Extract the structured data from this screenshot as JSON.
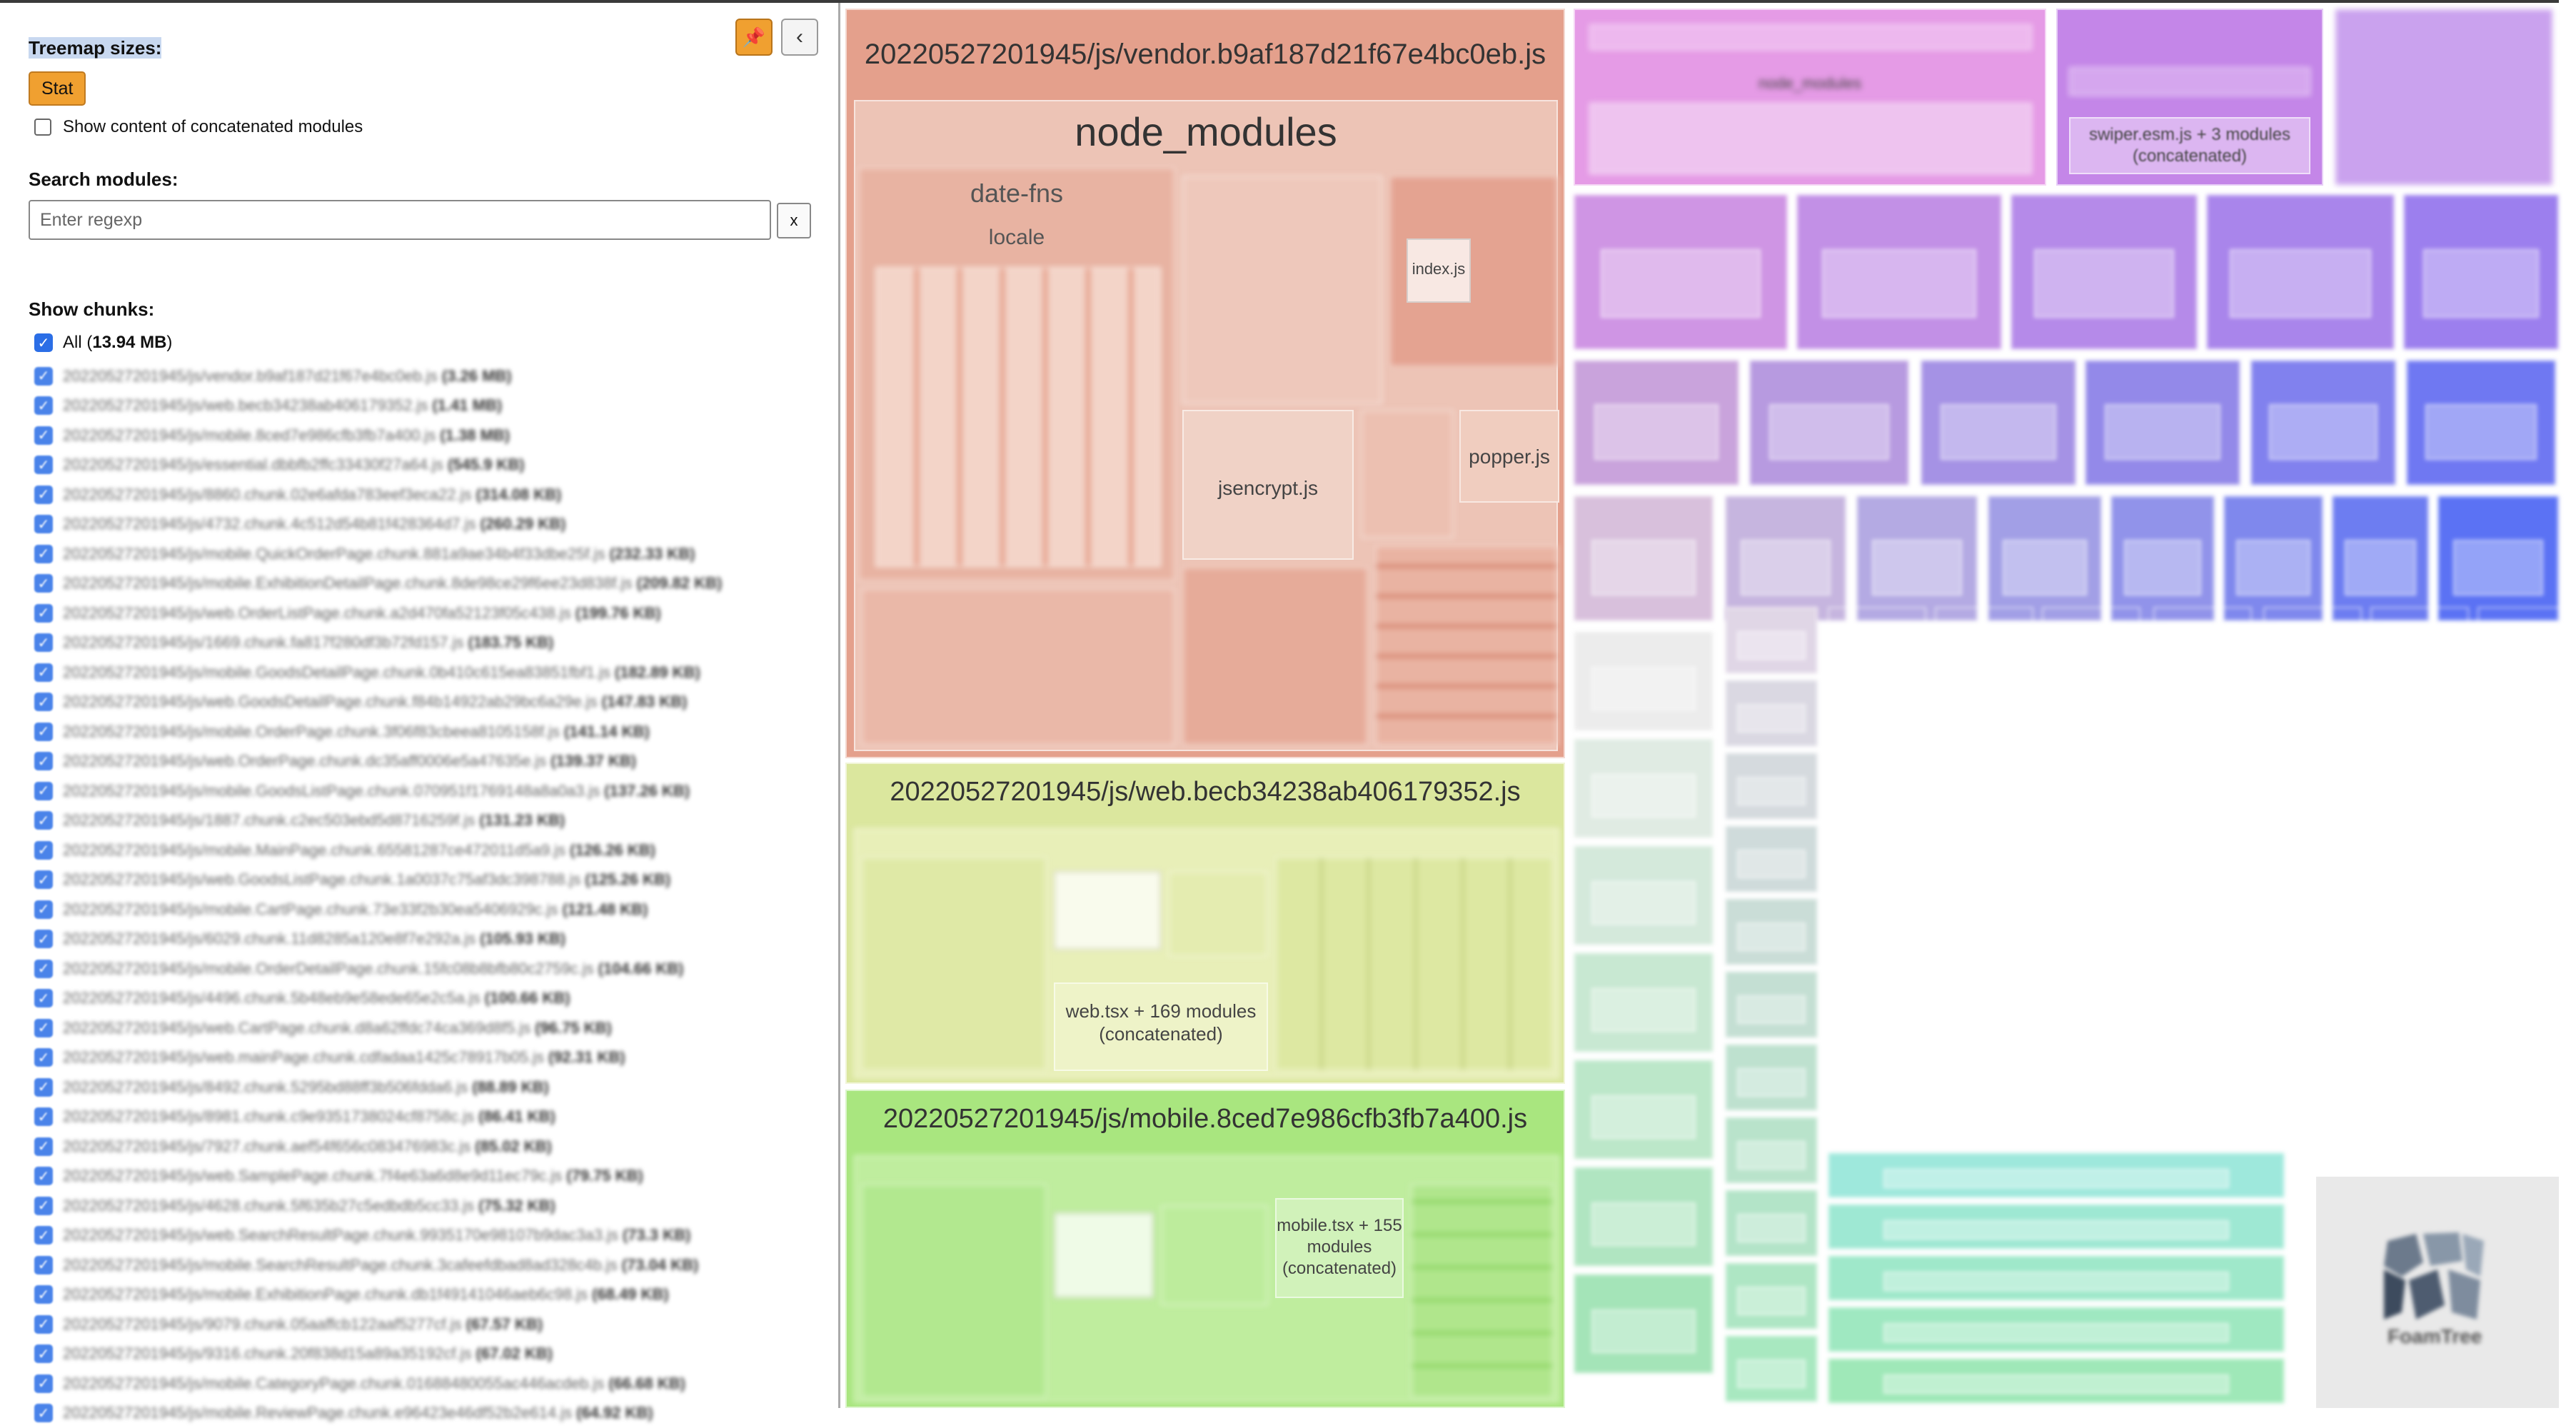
{
  "sidebar": {
    "treemap_sizes_label": "Treemap sizes:",
    "size_option_label": "Stat",
    "show_concat_label": "Show content of concatenated modules",
    "search_label": "Search modules:",
    "search_placeholder": "Enter regexp",
    "clear_label": "x",
    "pin_icon": "pin-icon",
    "collapse_icon": "chevron-left-icon",
    "pin_glyph": "📌",
    "collapse_glyph": "‹",
    "show_chunks_label": "Show chunks:",
    "all_prefix": "All (",
    "all_size": "13.94 MB",
    "all_suffix": ")",
    "chunks": [
      {
        "name": "20220527201945/js/vendor.b9af187d21f67e4bc0eb.js",
        "size": "3.26 MB"
      },
      {
        "name": "20220527201945/js/web.becb34238ab406179352.js",
        "size": "1.41 MB"
      },
      {
        "name": "20220527201945/js/mobile.8ced7e986cfb3fb7a400.js",
        "size": "1.38 MB"
      },
      {
        "name": "20220527201945/js/essential.dbbfb2ffc33430f27a64.js",
        "size": "545.9 KB"
      },
      {
        "name": "20220527201945/js/8860.chunk.02e6afda783eef3eca22.js",
        "size": "314.08 KB"
      },
      {
        "name": "20220527201945/js/4732.chunk.4c512d54b81f428364d7.js",
        "size": "260.29 KB"
      },
      {
        "name": "20220527201945/js/mobile.QuickOrderPage.chunk.881a9ae34b4f33dbe25f.js",
        "size": "232.33 KB"
      },
      {
        "name": "20220527201945/js/mobile.ExhibitionDetailPage.chunk.8de98ce29f6ee23d838f.js",
        "size": "209.82 KB"
      },
      {
        "name": "20220527201945/js/web.OrderListPage.chunk.a2d470fa52123f05c438.js",
        "size": "199.76 KB"
      },
      {
        "name": "20220527201945/js/1669.chunk.fa817f280df3b72fd157.js",
        "size": "183.75 KB"
      },
      {
        "name": "20220527201945/js/mobile.GoodsDetailPage.chunk.0b410c615ea83851fbf1.js",
        "size": "182.89 KB"
      },
      {
        "name": "20220527201945/js/web.GoodsDetailPage.chunk.f84b14922ab29bc6a29e.js",
        "size": "147.83 KB"
      },
      {
        "name": "20220527201945/js/mobile.OrderPage.chunk.3f06f83cbeea8105158f.js",
        "size": "141.14 KB"
      },
      {
        "name": "20220527201945/js/web.OrderPage.chunk.dc35aff0006e5a47635e.js",
        "size": "139.37 KB"
      },
      {
        "name": "20220527201945/js/mobile.GoodsListPage.chunk.070951f1769148a8a0a3.js",
        "size": "137.26 KB"
      },
      {
        "name": "20220527201945/js/1887.chunk.c2ec503ebd5d8716259f.js",
        "size": "131.23 KB"
      },
      {
        "name": "20220527201945/js/mobile.MainPage.chunk.65581287ce472011d5a9.js",
        "size": "126.26 KB"
      },
      {
        "name": "20220527201945/js/web.GoodsListPage.chunk.1a0037c75af3dc398788.js",
        "size": "125.26 KB"
      },
      {
        "name": "20220527201945/js/mobile.CartPage.chunk.73e33f2b30ea5406929c.js",
        "size": "121.48 KB"
      },
      {
        "name": "20220527201945/js/6029.chunk.11d8285a120e8f7e292a.js",
        "size": "105.93 KB"
      },
      {
        "name": "20220527201945/js/mobile.OrderDetailPage.chunk.15fc08b8bfb80c2759c.js",
        "size": "104.66 KB"
      },
      {
        "name": "20220527201945/js/4496.chunk.5b48eb9e58ede65e2c5a.js",
        "size": "100.66 KB"
      },
      {
        "name": "20220527201945/js/web.CartPage.chunk.d8a62ffdc74ca369d8f5.js",
        "size": "96.75 KB"
      },
      {
        "name": "20220527201945/js/web.mainPage.chunk.cdfadaa1425c78917b05.js",
        "size": "92.31 KB"
      },
      {
        "name": "20220527201945/js/8492.chunk.5295bd88ff3b506fdda6.js",
        "size": "88.89 KB"
      },
      {
        "name": "20220527201945/js/8981.chunk.c9e9351738024cf8758c.js",
        "size": "86.41 KB"
      },
      {
        "name": "20220527201945/js/7927.chunk.aef54f656c083476983c.js",
        "size": "85.02 KB"
      },
      {
        "name": "20220527201945/js/web.SamplePage.chunk.7f4e63a6d8e9d11ec79c.js",
        "size": "79.75 KB"
      },
      {
        "name": "20220527201945/js/4628.chunk.5f635b27c5edbdb5cc33.js",
        "size": "75.32 KB"
      },
      {
        "name": "20220527201945/js/web.SearchResultPage.chunk.9935170e98107b9dac3a3.js",
        "size": "73.3 KB"
      },
      {
        "name": "20220527201945/js/mobile.SearchResultPage.chunk.3cafeefdbad8ad328c4b.js",
        "size": "73.04 KB"
      },
      {
        "name": "20220527201945/js/mobile.ExhibitionPage.chunk.db1f49141046aeb6c98.js",
        "size": "68.49 KB"
      },
      {
        "name": "20220527201945/js/9079.chunk.05aaffcb122aaf5277cf.js",
        "size": "67.57 KB"
      },
      {
        "name": "20220527201945/js/9316.chunk.20f838d15a89a35192cf.js",
        "size": "67.02 KB"
      },
      {
        "name": "20220527201945/js/mobile.CategoryPage.chunk.01688480055ac446acdeb.js",
        "size": "66.68 KB"
      },
      {
        "name": "20220527201945/js/mobile.ReviewPage.chunk.e96423e46df52b2e614.js",
        "size": "64.92 KB"
      }
    ]
  },
  "treemap": {
    "vendor_title": "20220527201945/js/vendor.b9af187d21f67e4bc0eb.js",
    "vendor_node_modules": "node_modules",
    "vendor_date_fns": "date-fns",
    "vendor_locale": "locale",
    "vendor_jsencrypt": "jsencrypt.js",
    "vendor_popper": "popper.js",
    "vendor_index": "index.js",
    "web_title": "20220527201945/js/web.becb34238ab406179352.js",
    "web_concat": "web.tsx + 169 modules (concatenated)",
    "mobile_title": "20220527201945/js/mobile.8ced7e986cfb3fb7a400.js",
    "mobile_concat": "mobile.tsx + 155 modules (concatenated)",
    "essential_node_modules": "node_modules",
    "swiper_label": "swiper.esm.js + 3 modules (concatenated)",
    "logo_text": "FoamTree",
    "colors": {
      "vendor": "#e0917a",
      "web": "#d8e68a",
      "mobile": "#a8e67a",
      "essential": "#e29ee6",
      "purple": "#b69ae8",
      "blue": "#8a9cf5",
      "cyan": "#8fe8ea",
      "green": "#a6e8c0"
    }
  }
}
